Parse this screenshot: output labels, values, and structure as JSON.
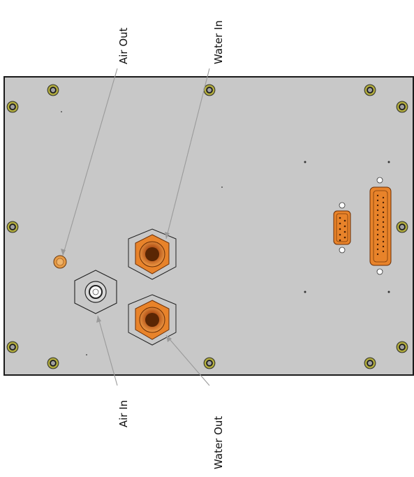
{
  "labels": {
    "air_out": "Air Out",
    "water_in": "Water In",
    "air_in": "Air In",
    "water_out": "Water Out"
  },
  "colors": {
    "panel": "#c8c8c8",
    "panel_border": "#1a1a1a",
    "fitting_orange": "#e8832a",
    "fitting_dark": "#7a3a08",
    "screw_ring": "#c9c23a",
    "leader_line": "#9a9a9a"
  },
  "icons": {
    "panel": "back-panel-plate",
    "screws": "mounting-screw-icon",
    "water_fittings": "hex-nut-fitting-icon",
    "air_in": "hex-air-fitting-icon",
    "air_out": "small-air-port-icon",
    "db9": "db9-connector-icon",
    "db25": "db25-connector-icon"
  }
}
